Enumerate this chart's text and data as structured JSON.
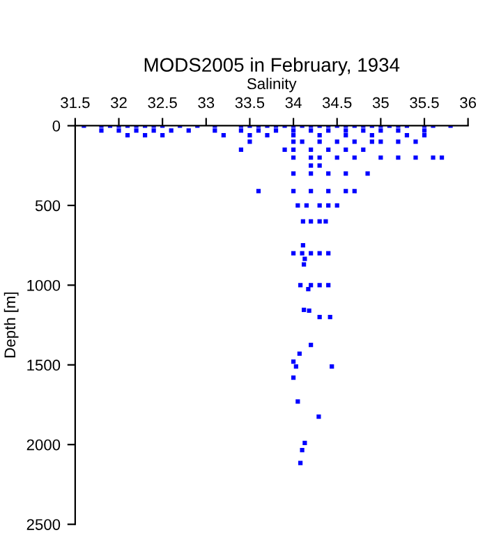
{
  "chart_data": {
    "type": "scatter",
    "title": "MODS2005 in February, 1934",
    "xlabel": "Salinity",
    "ylabel": "Depth [m]",
    "marker": "square",
    "grid": false,
    "legend": false,
    "xlim": [
      31.5,
      36
    ],
    "xticks": [
      31.5,
      32,
      32.5,
      33,
      33.5,
      34,
      34.5,
      35,
      35.5,
      36
    ],
    "ylim": [
      2500,
      0
    ],
    "yticks": [
      0,
      500,
      1000,
      1500,
      2000,
      2500
    ],
    "series": [
      {
        "color": "#0000ff",
        "x": [
          31.6,
          31.8,
          31.9,
          32.0,
          32.1,
          32.2,
          32.3,
          32.4,
          32.5,
          32.7,
          32.9,
          33.1,
          33.4,
          33.5,
          33.6,
          33.7,
          33.8,
          33.9,
          34.0,
          34.1,
          34.2,
          34.3,
          34.4,
          34.5,
          34.6,
          34.7,
          34.8,
          34.9,
          35.0,
          35.1,
          35.2,
          35.3,
          35.5,
          35.6,
          35.8,
          31.8,
          32.0,
          32.2,
          32.4,
          32.6,
          32.8,
          33.1,
          33.4,
          33.6,
          33.8,
          34.0,
          34.2,
          34.4,
          34.6,
          34.8,
          35.0,
          35.2,
          35.5,
          32.1,
          32.3,
          32.5,
          33.2,
          33.5,
          33.7,
          34.0,
          34.3,
          34.6,
          34.9,
          35.3,
          35.5,
          33.5,
          34.0,
          34.1,
          34.3,
          34.5,
          34.7,
          34.9,
          35.0,
          35.2,
          35.4,
          33.4,
          33.9,
          34.0,
          34.2,
          34.4,
          34.6,
          34.8,
          34.0,
          34.2,
          34.3,
          34.5,
          34.7,
          35.0,
          35.2,
          35.4,
          35.6,
          35.7,
          34.2,
          34.3,
          34.0,
          34.2,
          34.4,
          34.6,
          34.85,
          33.6,
          34.0,
          34.2,
          34.4,
          34.6,
          34.7,
          34.05,
          34.15,
          34.3,
          34.4,
          34.5,
          34.11,
          34.2,
          34.3,
          34.37,
          34.11,
          34.0,
          34.1,
          34.2,
          34.3,
          34.4,
          34.13,
          34.12,
          34.08,
          34.2,
          34.3,
          34.4,
          34.17,
          34.12,
          34.18,
          34.3,
          34.42,
          34.2,
          34.07,
          34.0,
          34.03,
          34.44,
          34.0,
          34.05,
          34.29,
          34.13,
          34.1,
          34.08
        ],
        "values": [
          0,
          0,
          0,
          0,
          0,
          0,
          0,
          0,
          0,
          0,
          0,
          0,
          0,
          0,
          0,
          0,
          0,
          0,
          0,
          0,
          0,
          0,
          0,
          0,
          0,
          0,
          0,
          0,
          0,
          0,
          0,
          0,
          0,
          0,
          0,
          30,
          30,
          30,
          30,
          30,
          30,
          30,
          30,
          30,
          30,
          30,
          30,
          30,
          30,
          30,
          30,
          30,
          30,
          60,
          60,
          60,
          60,
          60,
          60,
          60,
          60,
          60,
          60,
          60,
          60,
          100,
          100,
          100,
          100,
          100,
          100,
          100,
          100,
          100,
          100,
          150,
          150,
          150,
          150,
          150,
          150,
          150,
          200,
          200,
          200,
          200,
          200,
          200,
          200,
          200,
          200,
          200,
          250,
          250,
          300,
          300,
          300,
          300,
          300,
          410,
          410,
          410,
          410,
          410,
          410,
          500,
          500,
          500,
          500,
          500,
          600,
          600,
          600,
          600,
          750,
          800,
          800,
          800,
          800,
          800,
          835,
          870,
          1000,
          1000,
          1000,
          1000,
          1025,
          1155,
          1160,
          1200,
          1200,
          1375,
          1430,
          1480,
          1510,
          1510,
          1580,
          1730,
          1825,
          1990,
          2035,
          2115
        ]
      }
    ]
  }
}
